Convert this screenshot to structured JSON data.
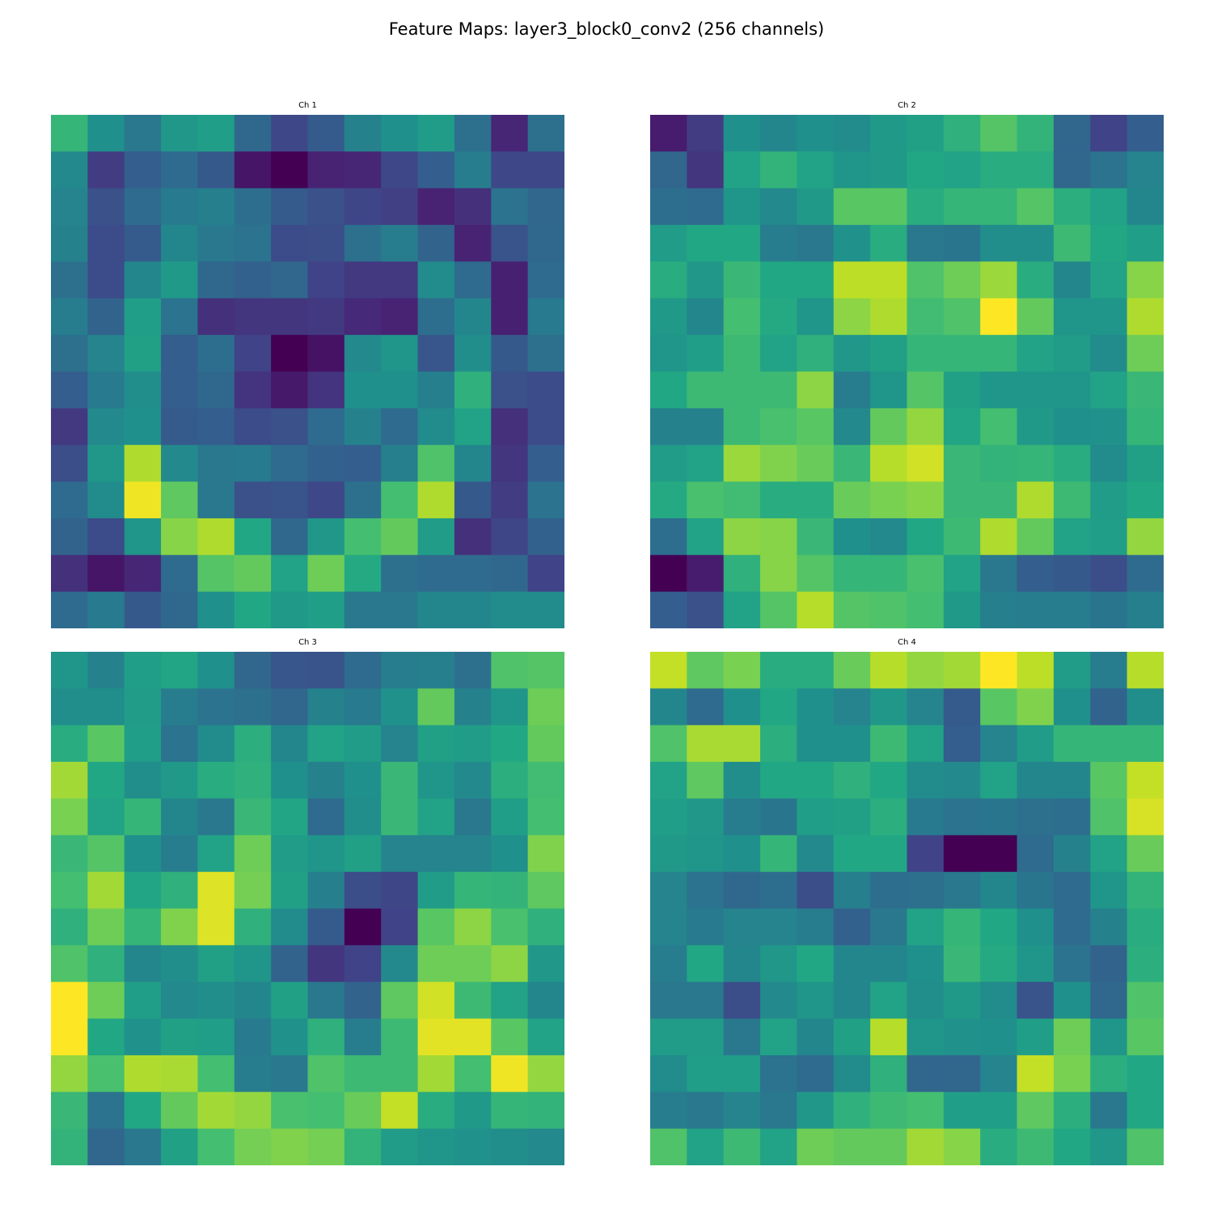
{
  "title": "Feature Maps: layer3_block0_conv2 (256 channels)",
  "chart_data": [
    {
      "type": "heatmap",
      "title": "Ch 1",
      "colormap": "viridis",
      "vmin": 0,
      "vmax": 1,
      "values": [
        [
          0.66,
          0.5,
          0.4,
          0.53,
          0.56,
          0.34,
          0.22,
          0.29,
          0.44,
          0.5,
          0.55,
          0.37,
          0.11,
          0.37
        ],
        [
          0.47,
          0.18,
          0.3,
          0.35,
          0.28,
          0.06,
          0.0,
          0.1,
          0.11,
          0.22,
          0.3,
          0.42,
          0.22,
          0.22
        ],
        [
          0.45,
          0.25,
          0.35,
          0.41,
          0.43,
          0.36,
          0.29,
          0.25,
          0.21,
          0.19,
          0.1,
          0.14,
          0.38,
          0.33
        ],
        [
          0.44,
          0.23,
          0.29,
          0.46,
          0.4,
          0.38,
          0.23,
          0.24,
          0.37,
          0.42,
          0.32,
          0.1,
          0.26,
          0.34
        ],
        [
          0.37,
          0.23,
          0.46,
          0.54,
          0.34,
          0.31,
          0.33,
          0.2,
          0.17,
          0.17,
          0.48,
          0.35,
          0.09,
          0.35
        ],
        [
          0.42,
          0.32,
          0.56,
          0.38,
          0.14,
          0.16,
          0.16,
          0.17,
          0.12,
          0.1,
          0.36,
          0.46,
          0.09,
          0.41
        ],
        [
          0.37,
          0.45,
          0.57,
          0.3,
          0.36,
          0.2,
          0.0,
          0.05,
          0.47,
          0.52,
          0.27,
          0.49,
          0.28,
          0.37
        ],
        [
          0.3,
          0.41,
          0.49,
          0.3,
          0.34,
          0.15,
          0.07,
          0.15,
          0.5,
          0.5,
          0.43,
          0.64,
          0.25,
          0.23
        ],
        [
          0.17,
          0.47,
          0.5,
          0.29,
          0.3,
          0.23,
          0.25,
          0.35,
          0.44,
          0.35,
          0.48,
          0.58,
          0.14,
          0.23
        ],
        [
          0.24,
          0.53,
          0.88,
          0.47,
          0.4,
          0.41,
          0.35,
          0.31,
          0.3,
          0.43,
          0.72,
          0.46,
          0.16,
          0.3
        ],
        [
          0.35,
          0.48,
          0.98,
          0.75,
          0.4,
          0.25,
          0.26,
          0.22,
          0.37,
          0.7,
          0.88,
          0.28,
          0.18,
          0.38
        ],
        [
          0.32,
          0.23,
          0.52,
          0.82,
          0.88,
          0.6,
          0.34,
          0.53,
          0.7,
          0.76,
          0.55,
          0.14,
          0.21,
          0.31
        ],
        [
          0.14,
          0.06,
          0.11,
          0.35,
          0.73,
          0.76,
          0.58,
          0.78,
          0.61,
          0.37,
          0.35,
          0.35,
          0.34,
          0.2
        ],
        [
          0.35,
          0.41,
          0.28,
          0.34,
          0.5,
          0.6,
          0.54,
          0.56,
          0.4,
          0.4,
          0.46,
          0.46,
          0.48,
          0.48
        ]
      ]
    },
    {
      "type": "heatmap",
      "title": "Ch 2",
      "colormap": "viridis",
      "vmin": 0,
      "vmax": 1,
      "values": [
        [
          0.08,
          0.18,
          0.5,
          0.46,
          0.5,
          0.48,
          0.54,
          0.57,
          0.64,
          0.73,
          0.65,
          0.33,
          0.2,
          0.3
        ],
        [
          0.33,
          0.16,
          0.58,
          0.65,
          0.58,
          0.52,
          0.54,
          0.6,
          0.58,
          0.62,
          0.62,
          0.33,
          0.38,
          0.45
        ],
        [
          0.36,
          0.35,
          0.52,
          0.47,
          0.54,
          0.74,
          0.74,
          0.62,
          0.66,
          0.66,
          0.73,
          0.63,
          0.58,
          0.46
        ],
        [
          0.55,
          0.6,
          0.6,
          0.42,
          0.4,
          0.51,
          0.62,
          0.4,
          0.39,
          0.49,
          0.49,
          0.68,
          0.6,
          0.56
        ],
        [
          0.62,
          0.53,
          0.67,
          0.6,
          0.6,
          0.9,
          0.9,
          0.72,
          0.78,
          0.85,
          0.62,
          0.46,
          0.58,
          0.82
        ],
        [
          0.54,
          0.46,
          0.7,
          0.61,
          0.52,
          0.83,
          0.88,
          0.69,
          0.72,
          1.0,
          0.76,
          0.52,
          0.52,
          0.88
        ],
        [
          0.52,
          0.56,
          0.68,
          0.58,
          0.64,
          0.53,
          0.57,
          0.66,
          0.66,
          0.66,
          0.58,
          0.55,
          0.48,
          0.78
        ],
        [
          0.6,
          0.68,
          0.68,
          0.68,
          0.83,
          0.42,
          0.52,
          0.73,
          0.57,
          0.52,
          0.52,
          0.52,
          0.58,
          0.67
        ],
        [
          0.44,
          0.44,
          0.68,
          0.71,
          0.74,
          0.47,
          0.76,
          0.84,
          0.59,
          0.7,
          0.54,
          0.5,
          0.51,
          0.66
        ],
        [
          0.55,
          0.58,
          0.85,
          0.81,
          0.77,
          0.67,
          0.89,
          0.93,
          0.67,
          0.65,
          0.66,
          0.62,
          0.48,
          0.57
        ],
        [
          0.61,
          0.71,
          0.69,
          0.62,
          0.62,
          0.77,
          0.8,
          0.82,
          0.67,
          0.67,
          0.88,
          0.68,
          0.55,
          0.6
        ],
        [
          0.36,
          0.58,
          0.83,
          0.82,
          0.67,
          0.5,
          0.47,
          0.6,
          0.68,
          0.88,
          0.76,
          0.58,
          0.56,
          0.84
        ],
        [
          0.0,
          0.08,
          0.64,
          0.82,
          0.73,
          0.66,
          0.66,
          0.71,
          0.58,
          0.4,
          0.3,
          0.28,
          0.24,
          0.35
        ],
        [
          0.3,
          0.25,
          0.58,
          0.73,
          0.89,
          0.73,
          0.72,
          0.7,
          0.54,
          0.43,
          0.42,
          0.42,
          0.39,
          0.43
        ]
      ]
    },
    {
      "type": "heatmap",
      "title": "Ch 3",
      "colormap": "viridis",
      "vmin": 0,
      "vmax": 1,
      "values": [
        [
          0.52,
          0.44,
          0.56,
          0.59,
          0.5,
          0.33,
          0.27,
          0.26,
          0.35,
          0.42,
          0.43,
          0.37,
          0.72,
          0.73
        ],
        [
          0.49,
          0.49,
          0.55,
          0.42,
          0.38,
          0.37,
          0.33,
          0.44,
          0.41,
          0.51,
          0.76,
          0.44,
          0.52,
          0.78
        ],
        [
          0.62,
          0.74,
          0.56,
          0.38,
          0.48,
          0.63,
          0.46,
          0.58,
          0.55,
          0.45,
          0.57,
          0.55,
          0.6,
          0.76
        ],
        [
          0.86,
          0.6,
          0.49,
          0.54,
          0.62,
          0.64,
          0.5,
          0.44,
          0.5,
          0.67,
          0.52,
          0.47,
          0.63,
          0.69
        ],
        [
          0.8,
          0.58,
          0.66,
          0.46,
          0.4,
          0.67,
          0.59,
          0.35,
          0.49,
          0.67,
          0.58,
          0.4,
          0.56,
          0.7
        ],
        [
          0.67,
          0.73,
          0.5,
          0.42,
          0.58,
          0.78,
          0.55,
          0.52,
          0.57,
          0.45,
          0.45,
          0.45,
          0.5,
          0.81
        ],
        [
          0.7,
          0.86,
          0.59,
          0.64,
          0.95,
          0.79,
          0.57,
          0.43,
          0.24,
          0.21,
          0.55,
          0.66,
          0.65,
          0.75
        ],
        [
          0.64,
          0.78,
          0.66,
          0.81,
          0.95,
          0.64,
          0.48,
          0.29,
          0.0,
          0.2,
          0.74,
          0.83,
          0.71,
          0.64
        ],
        [
          0.72,
          0.64,
          0.46,
          0.49,
          0.57,
          0.52,
          0.32,
          0.16,
          0.2,
          0.47,
          0.78,
          0.78,
          0.83,
          0.53
        ],
        [
          1.0,
          0.78,
          0.56,
          0.47,
          0.49,
          0.46,
          0.57,
          0.4,
          0.32,
          0.75,
          0.93,
          0.68,
          0.58,
          0.46
        ],
        [
          1.0,
          0.6,
          0.51,
          0.57,
          0.56,
          0.41,
          0.51,
          0.64,
          0.42,
          0.68,
          0.96,
          0.96,
          0.74,
          0.58
        ],
        [
          0.84,
          0.71,
          0.88,
          0.87,
          0.7,
          0.42,
          0.4,
          0.72,
          0.68,
          0.68,
          0.86,
          0.7,
          0.98,
          0.84
        ],
        [
          0.67,
          0.38,
          0.6,
          0.76,
          0.86,
          0.84,
          0.71,
          0.7,
          0.77,
          0.91,
          0.62,
          0.54,
          0.66,
          0.65
        ],
        [
          0.65,
          0.33,
          0.4,
          0.57,
          0.7,
          0.79,
          0.81,
          0.79,
          0.65,
          0.55,
          0.52,
          0.51,
          0.49,
          0.47
        ]
      ]
    },
    {
      "type": "heatmap",
      "title": "Ch 4",
      "colormap": "viridis",
      "vmin": 0,
      "vmax": 1,
      "values": [
        [
          0.91,
          0.75,
          0.8,
          0.62,
          0.62,
          0.77,
          0.89,
          0.84,
          0.86,
          1.0,
          0.9,
          0.55,
          0.42,
          0.89
        ],
        [
          0.46,
          0.35,
          0.5,
          0.6,
          0.5,
          0.45,
          0.53,
          0.45,
          0.29,
          0.74,
          0.81,
          0.5,
          0.32,
          0.49
        ],
        [
          0.72,
          0.87,
          0.87,
          0.63,
          0.5,
          0.5,
          0.68,
          0.58,
          0.3,
          0.45,
          0.55,
          0.66,
          0.66,
          0.66
        ],
        [
          0.58,
          0.75,
          0.49,
          0.6,
          0.6,
          0.64,
          0.6,
          0.48,
          0.47,
          0.58,
          0.46,
          0.46,
          0.74,
          0.91
        ],
        [
          0.56,
          0.53,
          0.42,
          0.39,
          0.56,
          0.57,
          0.63,
          0.41,
          0.38,
          0.39,
          0.37,
          0.36,
          0.72,
          0.94
        ],
        [
          0.54,
          0.52,
          0.5,
          0.66,
          0.47,
          0.6,
          0.6,
          0.2,
          0.0,
          0.0,
          0.35,
          0.44,
          0.58,
          0.77
        ],
        [
          0.45,
          0.38,
          0.34,
          0.36,
          0.24,
          0.43,
          0.36,
          0.37,
          0.4,
          0.46,
          0.39,
          0.35,
          0.52,
          0.65
        ],
        [
          0.45,
          0.41,
          0.45,
          0.45,
          0.42,
          0.31,
          0.4,
          0.58,
          0.66,
          0.6,
          0.5,
          0.35,
          0.44,
          0.62
        ],
        [
          0.42,
          0.6,
          0.46,
          0.53,
          0.6,
          0.46,
          0.46,
          0.5,
          0.67,
          0.61,
          0.52,
          0.38,
          0.32,
          0.63
        ],
        [
          0.4,
          0.4,
          0.24,
          0.47,
          0.52,
          0.46,
          0.58,
          0.49,
          0.54,
          0.48,
          0.26,
          0.5,
          0.34,
          0.72
        ],
        [
          0.55,
          0.55,
          0.4,
          0.58,
          0.46,
          0.57,
          0.89,
          0.52,
          0.51,
          0.5,
          0.56,
          0.78,
          0.52,
          0.74
        ],
        [
          0.48,
          0.56,
          0.56,
          0.38,
          0.35,
          0.48,
          0.64,
          0.33,
          0.33,
          0.45,
          0.91,
          0.8,
          0.63,
          0.6
        ],
        [
          0.42,
          0.4,
          0.45,
          0.4,
          0.53,
          0.64,
          0.68,
          0.7,
          0.56,
          0.56,
          0.75,
          0.63,
          0.4,
          0.6
        ],
        [
          0.72,
          0.58,
          0.68,
          0.58,
          0.78,
          0.76,
          0.76,
          0.86,
          0.82,
          0.62,
          0.68,
          0.6,
          0.53,
          0.72
        ]
      ]
    }
  ]
}
